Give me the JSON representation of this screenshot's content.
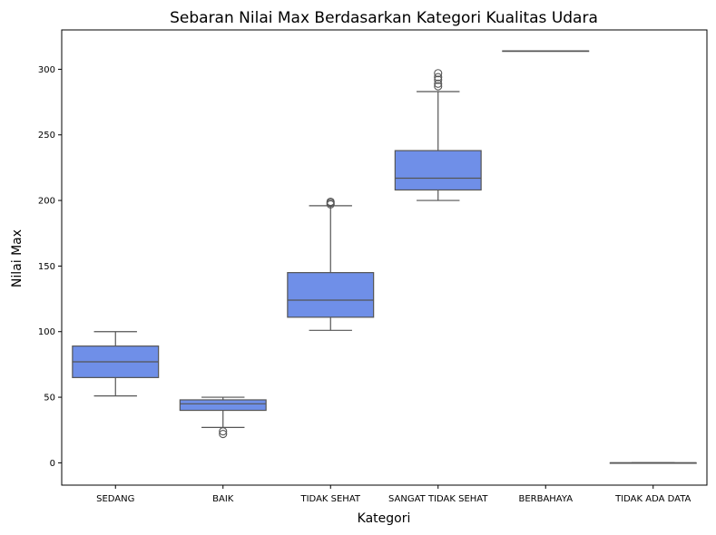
{
  "chart_data": {
    "type": "box",
    "title": "Sebaran Nilai Max Berdasarkan Kategori Kualitas Udara",
    "xlabel": "Kategori",
    "ylabel": "Nilai Max",
    "ylim": [
      -17,
      330
    ],
    "yticks": [
      0,
      50,
      100,
      150,
      200,
      250,
      300
    ],
    "grid": false,
    "box_color": "#6f8fe8",
    "line_color": "#555555",
    "categories": [
      "SEDANG",
      "BAIK",
      "TIDAK SEHAT",
      "SANGAT TIDAK SEHAT",
      "BERBAHAYA",
      "TIDAK ADA DATA"
    ],
    "boxes": [
      {
        "category": "SEDANG",
        "whislo": 51,
        "q1": 65,
        "med": 77,
        "q3": 89,
        "whishi": 100,
        "fliers": []
      },
      {
        "category": "BAIK",
        "whislo": 27,
        "q1": 40,
        "med": 45,
        "q3": 48,
        "whishi": 50,
        "fliers": [
          22,
          24
        ]
      },
      {
        "category": "TIDAK SEHAT",
        "whislo": 101,
        "q1": 111,
        "med": 124,
        "q3": 145,
        "whishi": 196,
        "fliers": [
          197,
          198,
          199
        ]
      },
      {
        "category": "SANGAT TIDAK SEHAT",
        "whislo": 200,
        "q1": 208,
        "med": 217,
        "q3": 238,
        "whishi": 283,
        "fliers": [
          287,
          289,
          292,
          294,
          297
        ]
      },
      {
        "category": "BERBAHAYA",
        "whislo": 314,
        "q1": 314,
        "med": 314,
        "q3": 314,
        "whishi": 314,
        "fliers": []
      },
      {
        "category": "TIDAK ADA DATA",
        "whislo": 0,
        "q1": 0,
        "med": 0,
        "q3": 0,
        "whishi": 0,
        "fliers": []
      }
    ]
  }
}
